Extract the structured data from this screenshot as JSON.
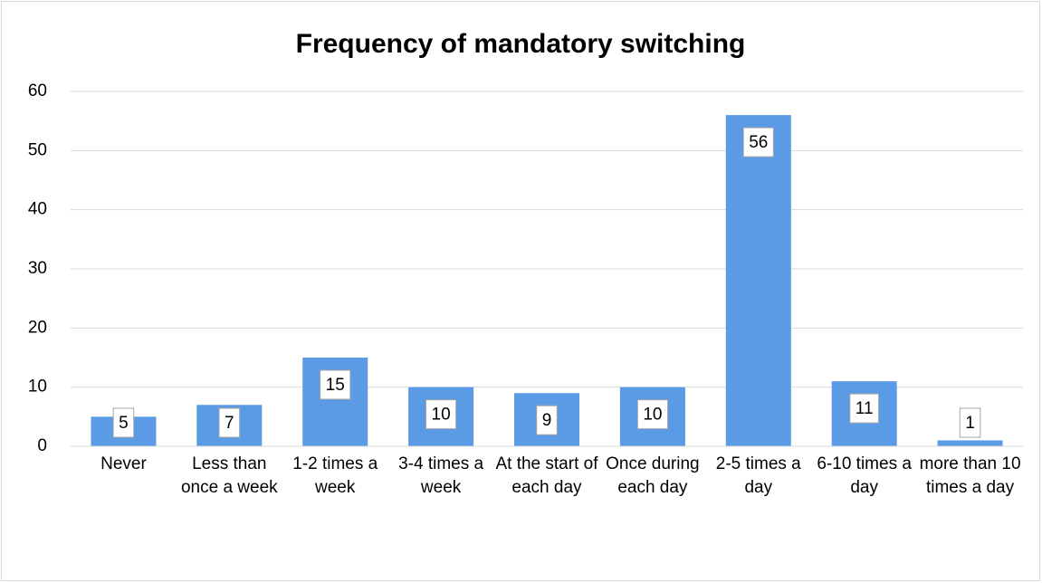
{
  "chart_data": {
    "type": "bar",
    "title": "Frequency of mandatory switching",
    "categories": [
      "Never",
      "Less than once a week",
      "1-2 times a week",
      "3-4 times a week",
      "At the start of each day",
      "Once during each day",
      "2-5 times a day",
      "6-10 times a day",
      "more than 10 times a day"
    ],
    "values": [
      5,
      7,
      15,
      10,
      9,
      10,
      56,
      11,
      1
    ],
    "color": "#5b9be6",
    "ylim": [
      0,
      60
    ],
    "yticks": [
      0,
      10,
      20,
      30,
      40,
      50,
      60
    ],
    "grid": true
  }
}
